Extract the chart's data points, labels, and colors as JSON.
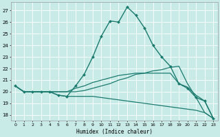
{
  "xlabel": "Humidex (Indice chaleur)",
  "bg_color": "#c9ebe8",
  "line_color": "#1a7a6e",
  "grid_color": "#ffffff",
  "xlim": [
    -0.5,
    23.5
  ],
  "ylim": [
    17.5,
    27.7
  ],
  "yticks": [
    18,
    19,
    20,
    21,
    22,
    23,
    24,
    25,
    26,
    27
  ],
  "xticks": [
    0,
    1,
    2,
    3,
    4,
    5,
    6,
    7,
    8,
    9,
    10,
    11,
    12,
    13,
    14,
    15,
    16,
    17,
    18,
    19,
    20,
    21,
    22,
    23
  ],
  "series": [
    {
      "x": [
        0,
        1,
        2,
        3,
        4,
        5,
        6,
        7,
        8,
        9,
        10,
        11,
        12,
        13,
        14,
        15,
        16,
        17,
        18,
        19,
        20,
        21,
        22,
        23
      ],
      "y": [
        20.5,
        20.0,
        20.0,
        20.0,
        20.0,
        19.7,
        19.6,
        20.5,
        21.5,
        23.0,
        24.8,
        26.1,
        26.0,
        27.3,
        26.6,
        25.5,
        24.0,
        23.0,
        22.2,
        20.7,
        20.3,
        19.5,
        19.2,
        17.7
      ],
      "marker": "D",
      "markersize": 2.0,
      "linewidth": 1.0
    },
    {
      "x": [
        0,
        1,
        2,
        3,
        4,
        5,
        6,
        7,
        8,
        9,
        10,
        11,
        12,
        13,
        14,
        15,
        16,
        17,
        18,
        19,
        20,
        21,
        22,
        23
      ],
      "y": [
        20.5,
        20.0,
        20.0,
        20.0,
        20.0,
        20.0,
        20.0,
        20.0,
        20.1,
        20.3,
        20.5,
        20.7,
        21.0,
        21.2,
        21.5,
        21.6,
        21.8,
        21.9,
        22.1,
        22.2,
        20.7,
        19.5,
        18.2,
        17.7
      ],
      "marker": null,
      "linewidth": 0.9
    },
    {
      "x": [
        0,
        1,
        2,
        3,
        4,
        5,
        6,
        7,
        8,
        9,
        10,
        11,
        12,
        13,
        14,
        15,
        16,
        17,
        18,
        19,
        20,
        21,
        22,
        23
      ],
      "y": [
        20.5,
        20.0,
        20.0,
        20.0,
        20.0,
        19.7,
        19.6,
        19.6,
        19.6,
        19.6,
        19.5,
        19.4,
        19.3,
        19.2,
        19.1,
        19.0,
        18.9,
        18.8,
        18.7,
        18.6,
        18.5,
        18.4,
        18.2,
        17.7
      ],
      "marker": null,
      "linewidth": 0.9
    },
    {
      "x": [
        0,
        1,
        2,
        3,
        4,
        5,
        6,
        7,
        8,
        9,
        10,
        11,
        12,
        13,
        14,
        15,
        16,
        17,
        18,
        19,
        20,
        21,
        22,
        23
      ],
      "y": [
        20.5,
        20.0,
        20.0,
        20.0,
        20.0,
        20.0,
        20.0,
        20.3,
        20.5,
        20.8,
        21.0,
        21.2,
        21.4,
        21.5,
        21.6,
        21.6,
        21.6,
        21.6,
        21.6,
        20.7,
        20.4,
        19.7,
        19.2,
        17.7
      ],
      "marker": null,
      "linewidth": 0.9
    }
  ]
}
